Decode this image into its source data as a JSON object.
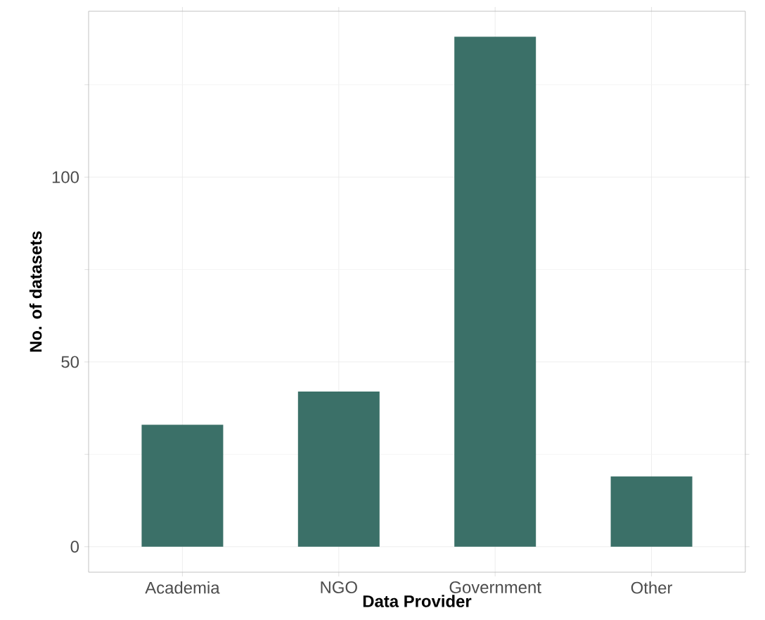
{
  "chart_data": {
    "type": "bar",
    "xlabel": "Data Provider",
    "ylabel": "No. of datasets",
    "categories": [
      "Academia",
      "NGO",
      "Government",
      "Other"
    ],
    "values": [
      33,
      42,
      138,
      19
    ],
    "color": "#3b7068",
    "ylim": [
      -6.9,
      144.9
    ],
    "yticks": [
      0,
      50,
      100
    ],
    "grid": true
  }
}
